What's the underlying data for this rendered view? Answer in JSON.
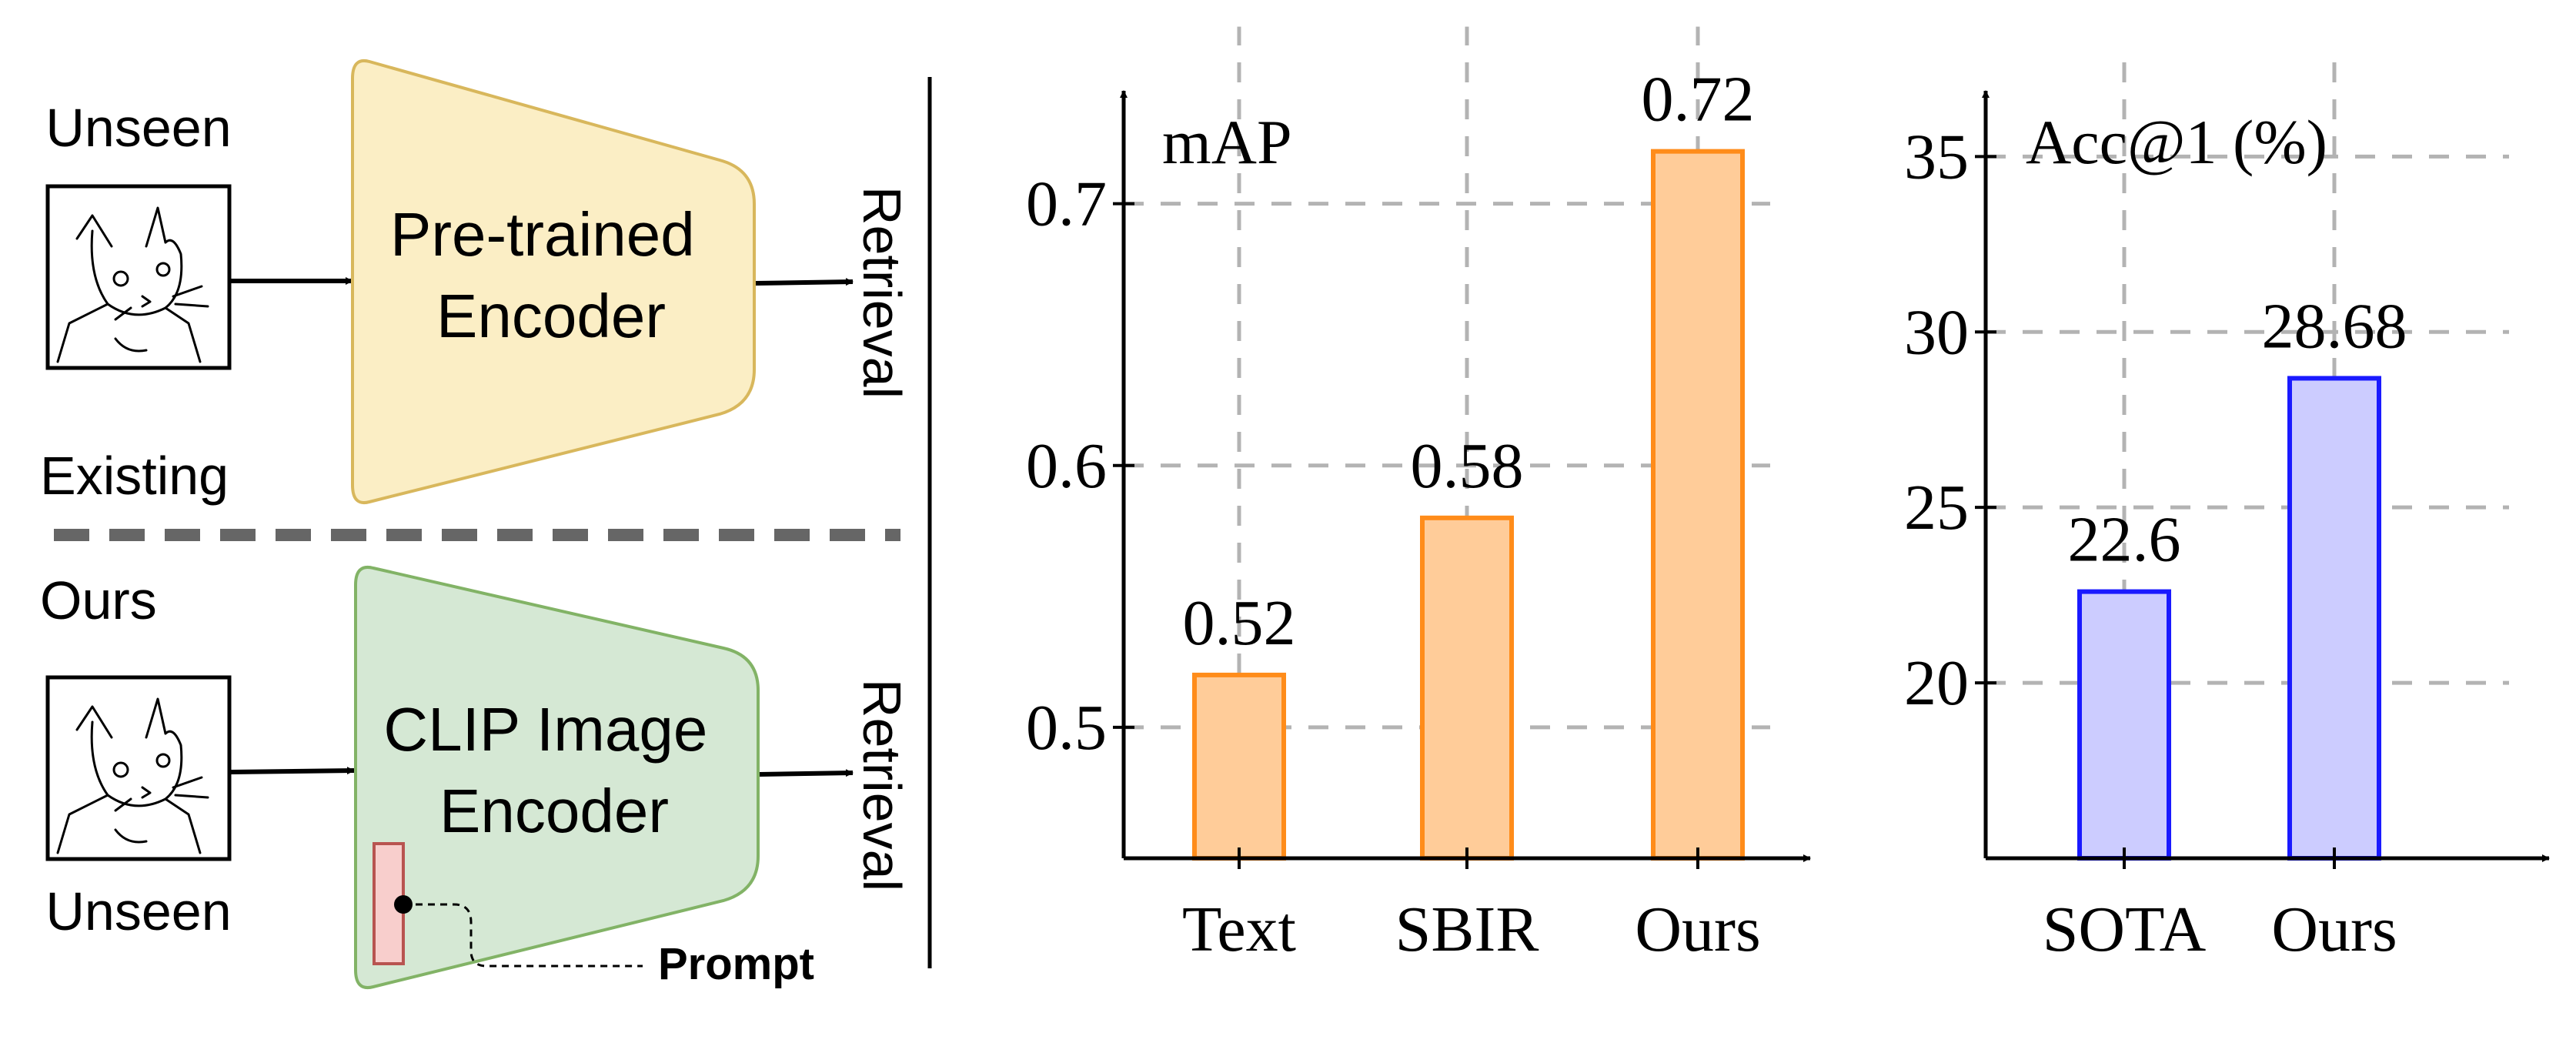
{
  "diagram": {
    "existing": {
      "input_label": "Unseen",
      "section_label": "Existing",
      "encoder_lines": [
        "Pre-trained",
        "Encoder"
      ],
      "output_label": "Retrieval",
      "encoder_fill": "#fbeec5",
      "encoder_stroke": "#d8b75c"
    },
    "ours": {
      "section_label": "Ours",
      "input_label": "Unseen",
      "encoder_lines": [
        "CLIP Image",
        "Encoder"
      ],
      "output_label": "Retrieval",
      "prompt_label": "Prompt",
      "encoder_fill": "#d5e8d4",
      "encoder_stroke": "#82b366",
      "prompt_fill": "#f8cecc",
      "prompt_stroke": "#b85450"
    }
  },
  "chart_data": [
    {
      "type": "bar",
      "title": "",
      "axis_label": "mAP",
      "categories": [
        "Text",
        "SBIR",
        "Ours"
      ],
      "values": [
        0.52,
        0.58,
        0.72
      ],
      "value_labels": [
        "0.52",
        "0.58",
        "0.72"
      ],
      "yticks": [
        0.5,
        0.6,
        0.7
      ],
      "ytick_labels": [
        "0.5",
        "0.6",
        "0.7"
      ],
      "ylim": [
        0.45,
        0.75
      ],
      "grid": true,
      "bar_fill": "#ffcc99",
      "bar_stroke": "#ff8c1a"
    },
    {
      "type": "bar",
      "title": "",
      "axis_label": "Acc@1 (%)",
      "categories": [
        "SOTA",
        "Ours"
      ],
      "values": [
        22.6,
        28.68
      ],
      "value_labels": [
        "22.6",
        "28.68"
      ],
      "yticks": [
        20,
        25,
        30,
        35
      ],
      "ytick_labels": [
        "20",
        "25",
        "30",
        "35"
      ],
      "ylim": [
        15,
        36.5
      ],
      "grid": true,
      "bar_fill": "#ccccff",
      "bar_stroke": "#1a1aff"
    }
  ]
}
